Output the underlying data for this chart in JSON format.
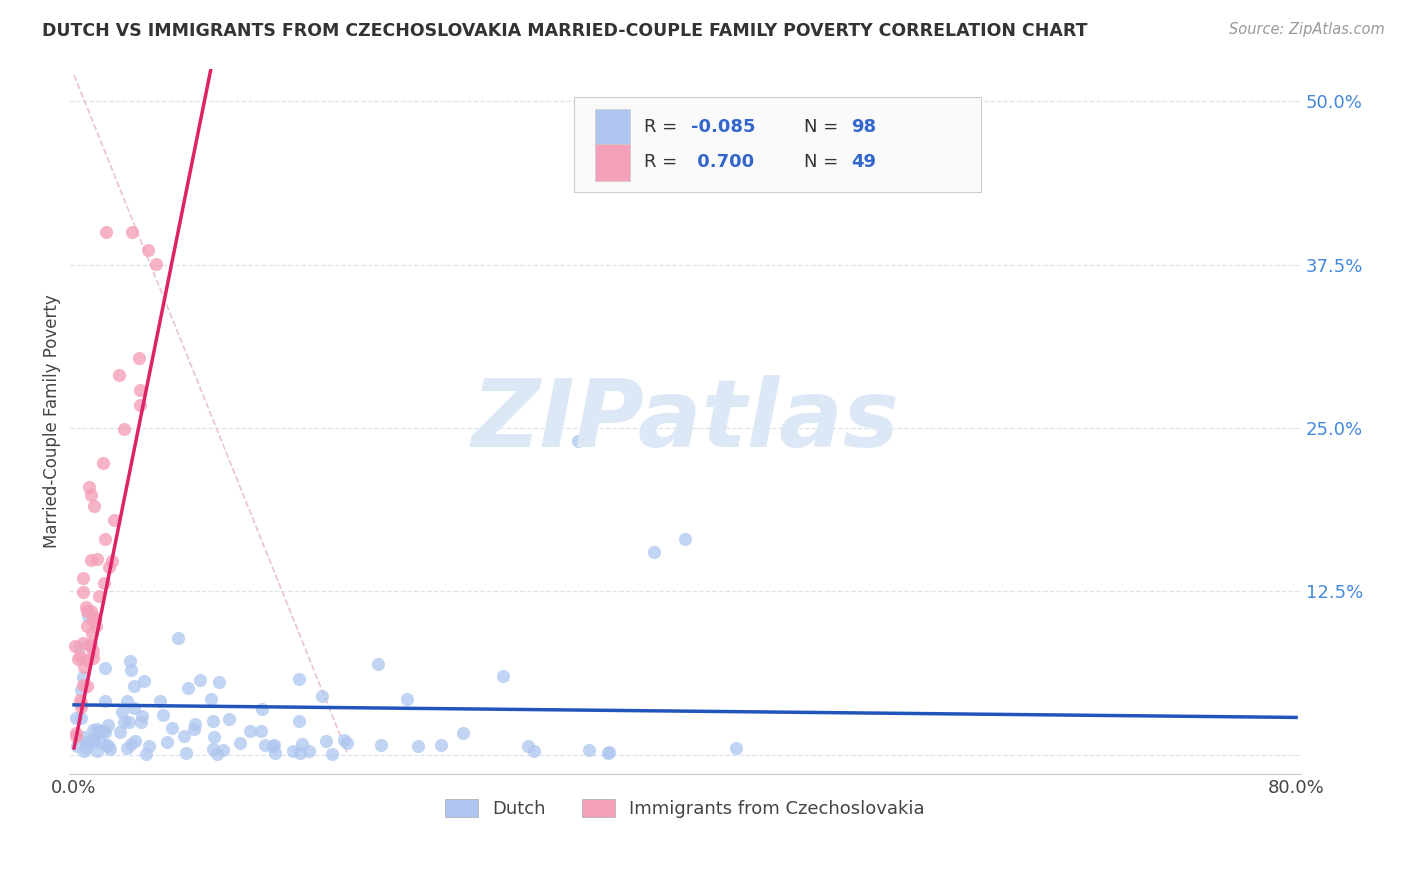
{
  "title": "DUTCH VS IMMIGRANTS FROM CZECHOSLOVAKIA MARRIED-COUPLE FAMILY POVERTY CORRELATION CHART",
  "source": "Source: ZipAtlas.com",
  "ylabel": "Married-Couple Family Poverty",
  "xlim": [
    0.0,
    0.8
  ],
  "ylim": [
    -0.015,
    0.525
  ],
  "yticks": [
    0.0,
    0.125,
    0.25,
    0.375,
    0.5
  ],
  "ytick_labels_right": [
    "",
    "12.5%",
    "25.0%",
    "37.5%",
    "50.0%"
  ],
  "xticks": [
    0.0,
    0.8
  ],
  "xtick_labels": [
    "0.0%",
    "80.0%"
  ],
  "dutch_R": -0.085,
  "dutch_N": 98,
  "czech_R": 0.7,
  "czech_N": 49,
  "dutch_color": "#aec6ef",
  "czech_color": "#f4a0b8",
  "dutch_line_color": "#2255bb",
  "czech_line_color": "#dd2266",
  "dash_line_color": "#e8b8c8",
  "grid_color": "#d8e0ee",
  "background_color": "#ffffff",
  "watermark_color": "#dce8f5",
  "title_color": "#333333",
  "source_color": "#999999",
  "legend_text_color": "#333333",
  "legend_value_color": "#3366cc",
  "right_axis_color": "#4488dd"
}
